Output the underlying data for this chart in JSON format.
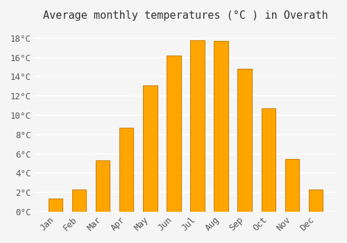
{
  "title": "Average monthly temperatures (°C ) in Overath",
  "months": [
    "Jan",
    "Feb",
    "Mar",
    "Apr",
    "May",
    "Jun",
    "Jul",
    "Aug",
    "Sep",
    "Oct",
    "Nov",
    "Dec"
  ],
  "values": [
    1.4,
    2.3,
    5.3,
    8.7,
    13.1,
    16.2,
    17.8,
    17.7,
    14.8,
    10.7,
    5.5,
    2.3
  ],
  "bar_color": "#FFA500",
  "bar_edge_color": "#CC8400",
  "background_color": "#f5f5f5",
  "grid_color": "#ffffff",
  "ylim": [
    0,
    19
  ],
  "yticks": [
    0,
    2,
    4,
    6,
    8,
    10,
    12,
    14,
    16,
    18
  ],
  "ytick_labels": [
    "0°C",
    "2°C",
    "4°C",
    "6°C",
    "8°C",
    "10°C",
    "12°C",
    "14°C",
    "16°C",
    "18°C"
  ],
  "title_fontsize": 11,
  "tick_fontsize": 9,
  "font_family": "monospace"
}
